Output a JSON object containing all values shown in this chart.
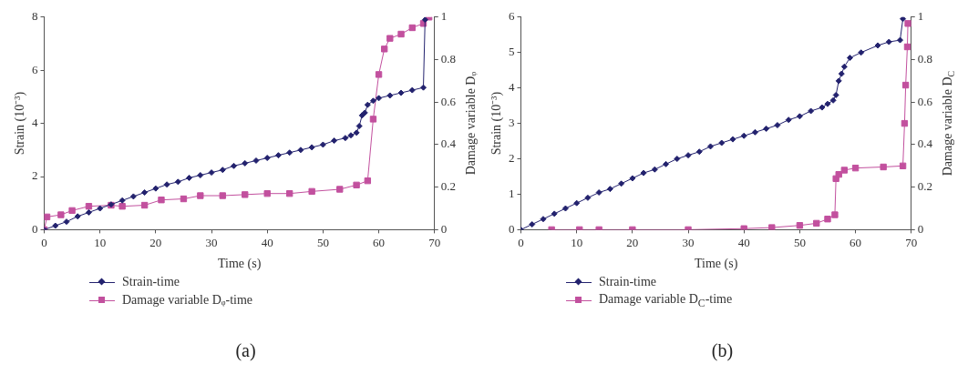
{
  "chart_data": [
    {
      "type": "line",
      "title": "(a)",
      "xlabel": "Time (s)",
      "ylabel": "Strain (10⁻³)",
      "y2label": "Damage variable Dᵩ",
      "xlim": [
        0,
        70
      ],
      "xticks": [
        0,
        10,
        20,
        30,
        40,
        50,
        60,
        70
      ],
      "ylim": [
        0,
        8
      ],
      "yticks": [
        0,
        2,
        4,
        6,
        8
      ],
      "y2lim": [
        0,
        1
      ],
      "y2ticks": [
        0,
        0.2,
        0.4,
        0.6,
        0.8,
        1
      ],
      "grid": false,
      "legend": "bottom",
      "line_style": "solid",
      "series": [
        {
          "name": "Strain-time",
          "color": "#23226e",
          "marker": "diamond",
          "x": [
            0,
            2,
            4,
            6,
            8,
            10,
            12,
            14,
            16,
            18,
            20,
            22,
            24,
            26,
            28,
            30,
            32,
            34,
            36,
            38,
            40,
            42,
            44,
            46,
            48,
            50,
            52,
            54,
            55,
            56,
            56.5,
            57,
            57.5,
            58,
            59,
            60,
            62,
            64,
            66,
            68,
            68.3
          ],
          "values": [
            0,
            0.15,
            0.3,
            0.5,
            0.65,
            0.8,
            0.95,
            1.1,
            1.25,
            1.4,
            1.55,
            1.7,
            1.8,
            1.95,
            2.05,
            2.15,
            2.25,
            2.4,
            2.5,
            2.6,
            2.7,
            2.8,
            2.9,
            3.0,
            3.1,
            3.2,
            3.35,
            3.45,
            3.55,
            3.65,
            3.9,
            4.3,
            4.4,
            4.7,
            4.85,
            4.95,
            5.05,
            5.15,
            5.25,
            5.35,
            7.9
          ]
        },
        {
          "name": "Damage variable Dᵩ-time",
          "color": "#c2509e",
          "marker": "square",
          "axis": "y2",
          "x": [
            0,
            0.5,
            3,
            5,
            8,
            12,
            14,
            18,
            21,
            25,
            28,
            32,
            36,
            40,
            44,
            48,
            53,
            56,
            58,
            59,
            60,
            61,
            62,
            64,
            66,
            68,
            69
          ],
          "values": [
            0,
            0.06,
            0.07,
            0.09,
            0.11,
            0.115,
            0.11,
            0.115,
            0.14,
            0.145,
            0.16,
            0.16,
            0.165,
            0.17,
            0.17,
            0.18,
            0.19,
            0.21,
            0.23,
            0.52,
            0.73,
            0.85,
            0.9,
            0.92,
            0.95,
            0.97,
            1
          ]
        }
      ]
    },
    {
      "type": "line",
      "title": "(b)",
      "xlabel": "Time (s)",
      "ylabel": "Strain (10⁻³)",
      "y2label": "Damage variable D$_{C}$",
      "xlim": [
        0,
        70
      ],
      "xticks": [
        0,
        10,
        20,
        30,
        40,
        50,
        60,
        70
      ],
      "ylim": [
        0,
        6
      ],
      "yticks": [
        0,
        1,
        2,
        3,
        4,
        5,
        6
      ],
      "y2lim": [
        0,
        1
      ],
      "y2ticks": [
        0,
        0.2,
        0.4,
        0.6,
        0.8,
        1
      ],
      "grid": false,
      "legend": "bottom",
      "line_style": "solid",
      "series": [
        {
          "name": "Strain-time",
          "color": "#23226e",
          "marker": "diamond",
          "x": [
            0,
            2,
            4,
            6,
            8,
            10,
            12,
            14,
            16,
            18,
            20,
            22,
            24,
            26,
            28,
            30,
            32,
            34,
            36,
            38,
            40,
            42,
            44,
            46,
            48,
            50,
            52,
            54,
            55,
            56,
            56.5,
            57,
            57.5,
            58,
            59,
            61,
            64,
            66,
            68,
            68.5
          ],
          "values": [
            0,
            0.15,
            0.3,
            0.45,
            0.6,
            0.75,
            0.9,
            1.05,
            1.15,
            1.3,
            1.45,
            1.6,
            1.7,
            1.85,
            2.0,
            2.1,
            2.2,
            2.35,
            2.45,
            2.55,
            2.65,
            2.75,
            2.85,
            2.95,
            3.1,
            3.2,
            3.35,
            3.45,
            3.55,
            3.65,
            3.8,
            4.2,
            4.4,
            4.6,
            4.85,
            5.0,
            5.2,
            5.3,
            5.35,
            5.95
          ]
        },
        {
          "name": "Damage variable D$_{C}$-time",
          "color": "#c2509e",
          "marker": "square",
          "axis": "y2",
          "x": [
            5.5,
            10.5,
            14,
            20,
            30,
            40,
            45,
            50,
            53,
            55,
            56.3,
            56.5,
            57,
            58,
            60,
            65,
            68.5,
            68.8,
            69,
            69.3,
            69.4
          ],
          "values": [
            0,
            0,
            0,
            0,
            0,
            0.005,
            0.01,
            0.02,
            0.03,
            0.05,
            0.07,
            0.24,
            0.26,
            0.28,
            0.29,
            0.295,
            0.3,
            0.5,
            0.68,
            0.86,
            0.97
          ]
        }
      ]
    }
  ]
}
